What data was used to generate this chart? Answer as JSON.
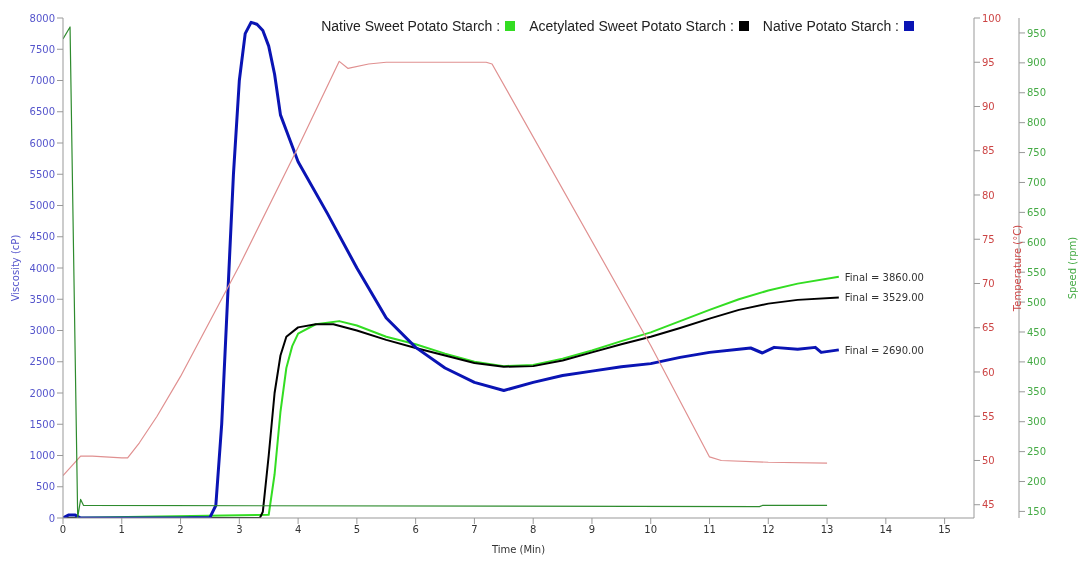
{
  "chart_data": {
    "type": "line",
    "xlabel": "Time (Min)",
    "ylabel": "Viscosity (cP)",
    "y2label": "Temperature (°C)",
    "y3label": "Speed (rpm)",
    "xlim": [
      0,
      15.5
    ],
    "xticks": [
      0,
      1,
      2,
      3,
      4,
      5,
      6,
      7,
      8,
      9,
      10,
      11,
      12,
      13,
      14,
      15
    ],
    "ylim": [
      0,
      8000
    ],
    "yticks": [
      0,
      500,
      1000,
      1500,
      2000,
      2500,
      3000,
      3500,
      4000,
      4500,
      5000,
      5500,
      6000,
      6500,
      7000,
      7500,
      8000
    ],
    "y2lim": [
      43.5,
      100
    ],
    "y2ticks": [
      45,
      50,
      55,
      60,
      65,
      70,
      75,
      80,
      85,
      90,
      95,
      100
    ],
    "y3lim": [
      139,
      975
    ],
    "y3ticks": [
      150,
      200,
      250,
      300,
      350,
      400,
      450,
      500,
      550,
      600,
      650,
      700,
      750,
      800,
      850,
      900,
      950
    ],
    "grid": false,
    "legend": "top right",
    "marker": "none",
    "line_style": "solid",
    "series": [
      {
        "name": "Native Sweet Potato Starch :",
        "color": "#33dd22",
        "x": [
          0,
          3.5,
          3.6,
          3.7,
          3.8,
          3.9,
          4.0,
          4.3,
          4.7,
          5.0,
          5.5,
          6.0,
          6.5,
          7.0,
          7.5,
          8.0,
          8.5,
          9.0,
          9.5,
          10.0,
          10.5,
          11.0,
          11.5,
          12.0,
          12.5,
          13.2
        ],
        "values": [
          0,
          50,
          700,
          1700,
          2400,
          2750,
          2950,
          3100,
          3150,
          3080,
          2900,
          2780,
          2630,
          2500,
          2430,
          2450,
          2550,
          2680,
          2830,
          2970,
          3150,
          3330,
          3500,
          3640,
          3750,
          3860
        ]
      },
      {
        "name": "Acetylated Sweet Potato Starch :",
        "color": "#000000",
        "x": [
          0,
          3.35,
          3.4,
          3.5,
          3.6,
          3.7,
          3.8,
          4.0,
          4.3,
          4.6,
          5.0,
          5.5,
          6.0,
          6.5,
          7.0,
          7.5,
          8.0,
          8.5,
          9.0,
          9.5,
          10.0,
          10.5,
          11.0,
          11.5,
          12.0,
          12.5,
          13.2
        ],
        "values": [
          0,
          0,
          100,
          1000,
          2000,
          2600,
          2900,
          3050,
          3100,
          3100,
          3000,
          2850,
          2720,
          2600,
          2480,
          2420,
          2430,
          2520,
          2650,
          2780,
          2900,
          3040,
          3190,
          3330,
          3430,
          3490,
          3529
        ]
      },
      {
        "name": "Native Potato Starch :",
        "color": "#0a14b4",
        "x": [
          0,
          0.1,
          0.2,
          0.3,
          1,
          2,
          2.5,
          2.6,
          2.7,
          2.8,
          2.9,
          3.0,
          3.1,
          3.2,
          3.3,
          3.4,
          3.5,
          3.6,
          3.7,
          3.8,
          4.0,
          4.5,
          5.0,
          5.5,
          6.0,
          6.5,
          7.0,
          7.5,
          8.0,
          8.5,
          9.0,
          9.5,
          10.0,
          10.5,
          11.0,
          11.5,
          11.7,
          11.9,
          12.1,
          12.5,
          12.8,
          12.9,
          13.2
        ],
        "values": [
          0,
          50,
          50,
          0,
          0,
          0,
          10,
          200,
          1500,
          3500,
          5500,
          7000,
          7750,
          7930,
          7900,
          7800,
          7550,
          7100,
          6450,
          6200,
          5700,
          4870,
          4000,
          3200,
          2730,
          2400,
          2170,
          2040,
          2170,
          2280,
          2350,
          2420,
          2470,
          2570,
          2650,
          2700,
          2720,
          2640,
          2730,
          2700,
          2730,
          2650,
          2690
        ]
      },
      {
        "color": "#e09090",
        "axis": "y2",
        "x": [
          0,
          0.3,
          0.5,
          1.0,
          1.1,
          1.3,
          1.6,
          2,
          3,
          4,
          4.7,
          4.85,
          5.2,
          5.5,
          7.2,
          7.3,
          10,
          11,
          11.2,
          12,
          13
        ],
        "values": [
          48.3,
          50.5,
          50.5,
          50.3,
          50.3,
          52,
          55,
          59.5,
          72,
          85.4,
          95.1,
          94.3,
          94.8,
          95,
          95,
          94.8,
          63,
          50.4,
          50,
          49.8,
          49.7
        ]
      },
      {
        "color": "#2e8b2e",
        "axis": "y3",
        "x": [
          0,
          0.12,
          0.25,
          0.3,
          0.35,
          11.85,
          11.9,
          13
        ],
        "values": [
          940,
          960,
          140,
          170,
          160,
          158,
          160,
          160
        ]
      }
    ],
    "annotations": [
      "Final = 3860.00",
      "Final = 3529.00",
      "Final = 2690.00"
    ]
  }
}
